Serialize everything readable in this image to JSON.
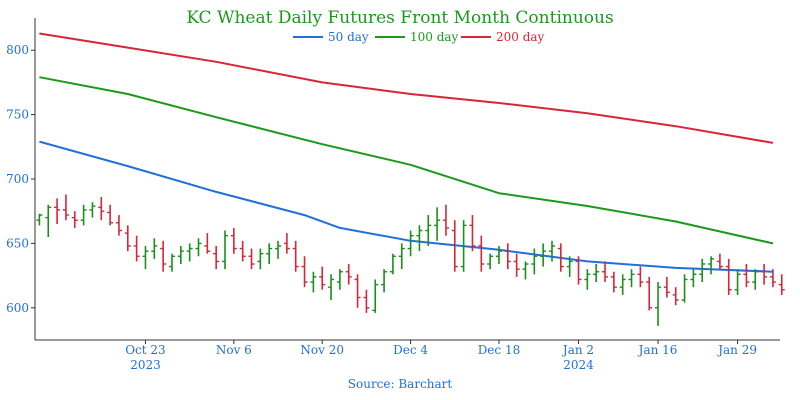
{
  "chart_data": {
    "type": "line",
    "title": "KC Wheat Daily Futures Front Month Continuous",
    "source": "Source: Barchart",
    "ylim": [
      575,
      825
    ],
    "y_ticks": [
      "600",
      "650",
      "700",
      "750",
      "800"
    ],
    "x_ticks": [
      {
        "label": "Oct 23",
        "sub": "2023",
        "x": 12
      },
      {
        "label": "Nov 6",
        "sub": "",
        "x": 22
      },
      {
        "label": "Nov 20",
        "sub": "",
        "x": 32
      },
      {
        "label": "Dec 4",
        "sub": "",
        "x": 42
      },
      {
        "label": "Dec 18",
        "sub": "",
        "x": 52
      },
      {
        "label": "Jan 2",
        "sub": "2024",
        "x": 61
      },
      {
        "label": "Jan 16",
        "sub": "",
        "x": 70
      },
      {
        "label": "Jan 29",
        "sub": "",
        "x": 79
      }
    ],
    "xlim": [
      -0.5,
      83.8
    ],
    "series": [
      {
        "name": "50 day",
        "color": "#1f6fdc",
        "values": [
          [
            0,
            729
          ],
          [
            10,
            710
          ],
          [
            20,
            690
          ],
          [
            30,
            672
          ],
          [
            34,
            662
          ],
          [
            42,
            652
          ],
          [
            52,
            645
          ],
          [
            62,
            636
          ],
          [
            72,
            631
          ],
          [
            83,
            628
          ]
        ]
      },
      {
        "name": "100 day",
        "color": "#1a9a1a",
        "values": [
          [
            0,
            779
          ],
          [
            10,
            766
          ],
          [
            20,
            748
          ],
          [
            32,
            727
          ],
          [
            42,
            711
          ],
          [
            52,
            689
          ],
          [
            62,
            679
          ],
          [
            72,
            667
          ],
          [
            83,
            650
          ]
        ]
      },
      {
        "name": "200 day",
        "color": "#d72638",
        "values": [
          [
            0,
            813
          ],
          [
            10,
            802
          ],
          [
            20,
            791
          ],
          [
            32,
            775
          ],
          [
            42,
            766
          ],
          [
            52,
            759
          ],
          [
            62,
            751
          ],
          [
            72,
            741
          ],
          [
            83,
            728
          ]
        ]
      }
    ],
    "ohlc_colors": {
      "up": "#1a8f1a",
      "down": "#d72638"
    },
    "ohlc": [
      [
        668,
        673,
        664,
        672
      ],
      [
        670,
        680,
        655,
        678
      ],
      [
        678,
        685,
        665,
        676
      ],
      [
        676,
        688,
        668,
        672
      ],
      [
        670,
        675,
        662,
        668
      ],
      [
        668,
        680,
        664,
        676
      ],
      [
        676,
        682,
        670,
        679
      ],
      [
        678,
        686,
        668,
        675
      ],
      [
        674,
        680,
        664,
        666
      ],
      [
        666,
        672,
        656,
        660
      ],
      [
        658,
        664,
        644,
        648
      ],
      [
        648,
        656,
        636,
        640
      ],
      [
        640,
        648,
        630,
        644
      ],
      [
        644,
        654,
        638,
        648
      ],
      [
        646,
        652,
        628,
        634
      ],
      [
        632,
        642,
        628,
        640
      ],
      [
        640,
        648,
        634,
        644
      ],
      [
        644,
        650,
        636,
        646
      ],
      [
        646,
        654,
        640,
        650
      ],
      [
        648,
        658,
        642,
        644
      ],
      [
        642,
        648,
        630,
        636
      ],
      [
        636,
        660,
        630,
        656
      ],
      [
        656,
        662,
        642,
        646
      ],
      [
        646,
        652,
        636,
        640
      ],
      [
        640,
        646,
        630,
        634
      ],
      [
        636,
        646,
        630,
        642
      ],
      [
        642,
        650,
        634,
        646
      ],
      [
        646,
        652,
        638,
        648
      ],
      [
        650,
        658,
        642,
        646
      ],
      [
        646,
        652,
        628,
        632
      ],
      [
        632,
        640,
        616,
        620
      ],
      [
        620,
        628,
        612,
        624
      ],
      [
        624,
        632,
        614,
        618
      ],
      [
        616,
        626,
        606,
        622
      ],
      [
        620,
        630,
        614,
        628
      ],
      [
        628,
        634,
        618,
        624
      ],
      [
        622,
        626,
        600,
        608
      ],
      [
        608,
        614,
        596,
        600
      ],
      [
        598,
        622,
        596,
        618
      ],
      [
        618,
        630,
        612,
        628
      ],
      [
        628,
        642,
        626,
        640
      ],
      [
        640,
        650,
        630,
        646
      ],
      [
        646,
        660,
        640,
        656
      ],
      [
        656,
        664,
        644,
        660
      ],
      [
        660,
        672,
        648,
        664
      ],
      [
        664,
        678,
        652,
        668
      ],
      [
        668,
        680,
        656,
        662
      ],
      [
        660,
        668,
        628,
        632
      ],
      [
        632,
        668,
        628,
        664
      ],
      [
        664,
        672,
        644,
        648
      ],
      [
        648,
        656,
        628,
        634
      ],
      [
        634,
        642,
        630,
        640
      ],
      [
        640,
        648,
        634,
        644
      ],
      [
        644,
        650,
        630,
        636
      ],
      [
        636,
        642,
        624,
        630
      ],
      [
        630,
        636,
        622,
        634
      ],
      [
        634,
        646,
        626,
        640
      ],
      [
        640,
        650,
        632,
        644
      ],
      [
        644,
        652,
        636,
        648
      ],
      [
        646,
        650,
        628,
        632
      ],
      [
        632,
        640,
        624,
        636
      ],
      [
        636,
        640,
        618,
        622
      ],
      [
        622,
        630,
        614,
        626
      ],
      [
        626,
        634,
        620,
        628
      ],
      [
        628,
        636,
        620,
        624
      ],
      [
        624,
        628,
        612,
        616
      ],
      [
        616,
        626,
        610,
        622
      ],
      [
        622,
        630,
        616,
        626
      ],
      [
        626,
        632,
        616,
        620
      ],
      [
        620,
        624,
        598,
        600
      ],
      [
        600,
        620,
        586,
        616
      ],
      [
        616,
        624,
        608,
        612
      ],
      [
        610,
        616,
        602,
        606
      ],
      [
        606,
        626,
        604,
        622
      ],
      [
        622,
        630,
        616,
        626
      ],
      [
        626,
        638,
        620,
        634
      ],
      [
        634,
        640,
        626,
        638
      ],
      [
        636,
        642,
        630,
        632
      ],
      [
        632,
        638,
        610,
        614
      ],
      [
        614,
        630,
        610,
        626
      ],
      [
        626,
        634,
        616,
        620
      ],
      [
        620,
        630,
        614,
        628
      ],
      [
        628,
        634,
        618,
        624
      ],
      [
        624,
        630,
        616,
        620
      ],
      [
        618,
        626,
        610,
        614
      ]
    ]
  }
}
